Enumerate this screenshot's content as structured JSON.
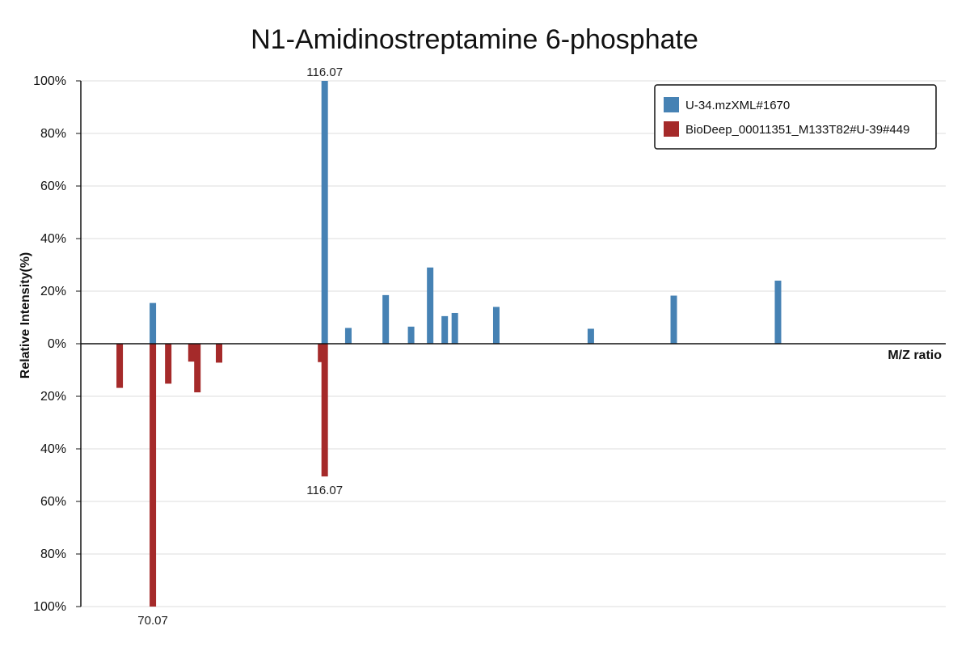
{
  "chart_data": {
    "type": "bar",
    "title": "N1-Amidinostreptamine 6-phosphate",
    "xlabel": "M/Z ratio",
    "ylabel": "Relative Intensity(%)",
    "y_ticks_top": [
      "100%",
      "80%",
      "60%",
      "40%",
      "20%",
      "0%"
    ],
    "y_ticks_bottom": [
      "20%",
      "40%",
      "60%",
      "80%",
      "100%"
    ],
    "grid": true,
    "legend_position": "top-right",
    "series": [
      {
        "name": "U-34.mzXML#1670",
        "color": "#4682b4",
        "direction": "up",
        "peaks": [
          {
            "mz": 70.07,
            "intensity": 15.5
          },
          {
            "mz": 116.07,
            "intensity": 100
          },
          {
            "mz": 122.4,
            "intensity": 6
          },
          {
            "mz": 132.4,
            "intensity": 18.5
          },
          {
            "mz": 139.2,
            "intensity": 6.5
          },
          {
            "mz": 144.3,
            "intensity": 29
          },
          {
            "mz": 148.2,
            "intensity": 10.5
          },
          {
            "mz": 150.9,
            "intensity": 11.7
          },
          {
            "mz": 162.0,
            "intensity": 14
          },
          {
            "mz": 187.3,
            "intensity": 5.7
          },
          {
            "mz": 209.5,
            "intensity": 18.3
          },
          {
            "mz": 237.4,
            "intensity": 24
          }
        ]
      },
      {
        "name": "BioDeep_00011351_M133T82#U-39#449",
        "color": "#a52a2a",
        "direction": "down",
        "peaks": [
          {
            "mz": 61.2,
            "intensity": 16.8
          },
          {
            "mz": 70.07,
            "intensity": 100
          },
          {
            "mz": 74.2,
            "intensity": 15.2
          },
          {
            "mz": 80.4,
            "intensity": 6.8
          },
          {
            "mz": 82.0,
            "intensity": 18.5
          },
          {
            "mz": 87.8,
            "intensity": 7.2
          },
          {
            "mz": 115.1,
            "intensity": 7
          },
          {
            "mz": 116.07,
            "intensity": 50.5
          }
        ]
      }
    ],
    "annotations": [
      {
        "text": "116.07",
        "series": 0,
        "mz": 116.07
      },
      {
        "text": "116.07",
        "series": 1,
        "mz": 116.07
      },
      {
        "text": "70.07",
        "series": 1,
        "mz": 70.07
      }
    ]
  }
}
